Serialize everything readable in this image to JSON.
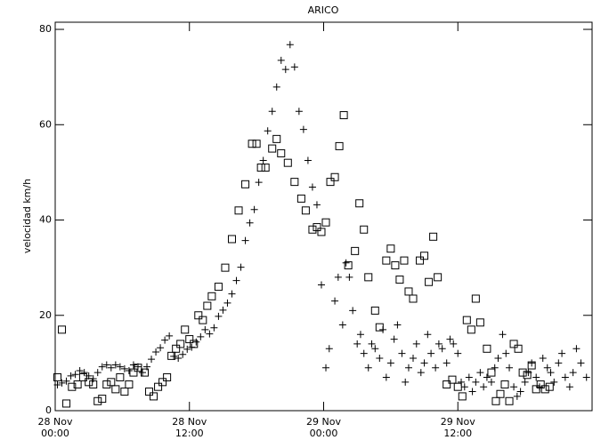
{
  "chart_data": {
    "type": "scatter",
    "title": "ARICO",
    "y_label": "velocidad km/h",
    "xlim": [
      0,
      48
    ],
    "ylim": [
      0,
      81.5
    ],
    "xticks": [
      {
        "value": 0,
        "label": "28 Nov\n00:00"
      },
      {
        "value": 12,
        "label": "28 Nov\n12:00"
      },
      {
        "value": 24,
        "label": "29 Nov\n00:00"
      },
      {
        "value": 36,
        "label": "29 Nov\n12:00"
      }
    ],
    "yticks": [
      0,
      20,
      40,
      60,
      80
    ],
    "series": [
      {
        "marker": "plus",
        "color": "#000000",
        "x": [
          0.2,
          0.6,
          1,
          1.4,
          1.8,
          2.2,
          2.6,
          3,
          3.4,
          3.8,
          4.2,
          4.6,
          5,
          5.4,
          5.8,
          6.2,
          6.6,
          7,
          7.4,
          7.8,
          8.2,
          8.6,
          9,
          9.4,
          9.8,
          10.2,
          10.6,
          11,
          11.4,
          11.8,
          12.2,
          12.6,
          13,
          13.4,
          13.8,
          14.2,
          14.6,
          15,
          15.4,
          15.8,
          16.2,
          16.6,
          17,
          17.4,
          17.8,
          18.2,
          18.6,
          19,
          19.4,
          19.8,
          20.2,
          20.6,
          21,
          21.4,
          21.8,
          22.2,
          22.6,
          23,
          23.4,
          23.8,
          24.2,
          24.5,
          25,
          25.3,
          25.7,
          26,
          26.3,
          26.6,
          27,
          27.3,
          27.6,
          28,
          28.3,
          28.6,
          29,
          29.3,
          29.6,
          30,
          30.3,
          30.6,
          31,
          31.3,
          31.6,
          32,
          32.3,
          32.7,
          33,
          33.3,
          33.6,
          34,
          34.3,
          34.6,
          35,
          35.3,
          35.6,
          36,
          36.3,
          36.6,
          37,
          37.3,
          37.6,
          38,
          38.3,
          38.6,
          39,
          39.3,
          39.6,
          40,
          40.3,
          40.6,
          41,
          41.3,
          41.6,
          42,
          42.3,
          42.6,
          43,
          43.3,
          43.6,
          44,
          44.3,
          44.6,
          45,
          45.3,
          45.6,
          46,
          46.3,
          46.6,
          47,
          47.5
        ],
        "values": [
          5.4,
          5.8,
          6.2,
          7.3,
          7.6,
          8.4,
          8,
          7.3,
          6.7,
          8,
          9.2,
          9.6,
          9,
          9.6,
          9.2,
          8.8,
          8.4,
          9.6,
          9.2,
          8,
          9.2,
          10.8,
          12.3,
          13.2,
          14.8,
          15.7,
          11.4,
          11,
          11.8,
          12.9,
          13.3,
          14.4,
          15.5,
          17,
          16.1,
          17.4,
          19.8,
          21.1,
          22.6,
          24.5,
          27.3,
          30.1,
          35.7,
          39.4,
          42.2,
          47.9,
          52.5,
          58.7,
          62.8,
          67.9,
          73.5,
          71.6,
          76.8,
          72.1,
          62.8,
          59,
          52.5,
          46.9,
          43.2,
          26.4,
          9,
          13,
          23,
          28,
          18,
          31,
          28,
          21,
          14,
          16,
          12,
          9,
          14,
          13,
          11,
          17,
          7,
          10,
          15,
          18,
          12,
          6,
          9,
          11,
          14,
          8,
          10,
          16,
          12,
          9,
          14,
          13,
          10,
          15,
          14,
          12,
          6,
          5,
          7,
          4,
          6,
          8,
          5,
          7,
          6,
          9,
          11,
          16,
          12,
          9,
          5,
          3,
          4,
          6,
          8,
          10,
          7,
          5,
          11,
          9,
          8,
          6,
          10,
          12,
          7,
          5,
          8,
          13,
          10,
          7
        ]
      },
      {
        "marker": "square",
        "color": "#000000",
        "x": [
          0.2,
          0.6,
          1,
          1.5,
          2,
          2.5,
          3,
          3.4,
          3.8,
          4.2,
          4.6,
          5,
          5.4,
          5.8,
          6.2,
          6.6,
          7,
          7.4,
          8,
          8.4,
          8.8,
          9.2,
          9.6,
          10,
          10.4,
          10.8,
          11.2,
          11.6,
          12,
          12.4,
          12.8,
          13.2,
          13.6,
          14,
          14.6,
          15.2,
          15.8,
          16.4,
          17,
          17.6,
          18,
          18.4,
          18.8,
          19.4,
          19.8,
          20.2,
          20.8,
          21.4,
          22,
          22.4,
          23,
          23.4,
          23.8,
          24.2,
          24.6,
          25,
          25.4,
          25.8,
          26.2,
          26.8,
          27.2,
          27.6,
          28,
          28.6,
          29,
          29.6,
          30,
          30.4,
          30.8,
          31.2,
          31.6,
          32,
          32.6,
          33,
          33.4,
          33.8,
          34.2,
          35,
          35.5,
          36,
          36.4,
          36.8,
          37.2,
          37.6,
          38,
          38.6,
          39,
          39.4,
          39.8,
          40.2,
          40.6,
          41,
          41.4,
          41.8,
          42.2,
          42.6,
          43,
          43.4,
          43.8,
          44.2
        ],
        "values": [
          7,
          17,
          1.5,
          5,
          5.5,
          7,
          6,
          5.5,
          2,
          2.5,
          5.5,
          6,
          4.5,
          7,
          4,
          5.5,
          8,
          9,
          8,
          4,
          3,
          5,
          6,
          7,
          11.5,
          13,
          14,
          17,
          15,
          14,
          20,
          19,
          22,
          24,
          26,
          30,
          36,
          42,
          47.5,
          56,
          56,
          51,
          51,
          55,
          57,
          54,
          52,
          48,
          44.5,
          42,
          38,
          38.5,
          37.5,
          39.5,
          48,
          49,
          55.5,
          62,
          30.5,
          33.5,
          43.5,
          38,
          28,
          21,
          17.5,
          31.5,
          34,
          30.5,
          27.5,
          31.5,
          25,
          23.5,
          31.5,
          32.5,
          27,
          36.5,
          28,
          5.5,
          6.5,
          5,
          3,
          19,
          17,
          23.5,
          18.5,
          13,
          8,
          2,
          3.5,
          5.5,
          2,
          14,
          13,
          8,
          7.5,
          9.5,
          4.5,
          5.5,
          4.5,
          5
        ]
      }
    ]
  }
}
